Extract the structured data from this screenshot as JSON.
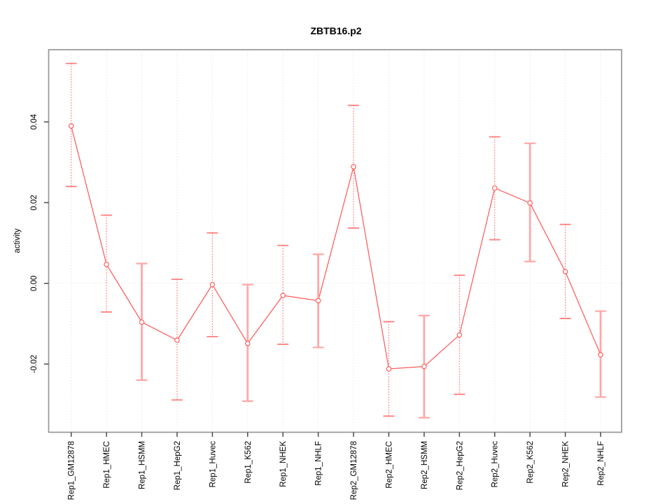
{
  "chart_data": {
    "type": "line",
    "title": "ZBTB16.p2",
    "xlabel": "",
    "ylabel": "activity",
    "categories": [
      "Rep1_GM12878",
      "Rep1_HMEC",
      "Rep1_HSMM",
      "Rep1_HepG2",
      "Rep1_Huvec",
      "Rep1_K562",
      "Rep1_NHEK",
      "Rep1_NHLF",
      "Rep2_GM12878",
      "Rep2_HMEC",
      "Rep2_HSMM",
      "Rep2_HepG2",
      "Rep2_Huvec",
      "Rep2_K562",
      "Rep2_NHEK",
      "Rep2_NHLF"
    ],
    "series": [
      {
        "name": "activity",
        "values": [
          0.039,
          0.0047,
          -0.0096,
          -0.0141,
          -0.0003,
          -0.0149,
          -0.003,
          -0.0043,
          0.0289,
          -0.0212,
          -0.0206,
          -0.0128,
          0.0236,
          0.0199,
          0.0029,
          -0.0177
        ],
        "ci_low": [
          0.024,
          -0.0071,
          -0.024,
          -0.0289,
          -0.0132,
          -0.0292,
          -0.0151,
          -0.0159,
          0.0137,
          -0.0329,
          -0.0333,
          -0.0275,
          0.0108,
          0.0054,
          -0.0087,
          -0.0282
        ],
        "ci_high": [
          0.0545,
          0.0169,
          0.0049,
          0.001,
          0.0125,
          -0.0003,
          0.0094,
          0.0072,
          0.0441,
          -0.0095,
          -0.008,
          0.002,
          0.0363,
          0.0347,
          0.0146,
          -0.0069
        ]
      }
    ],
    "error_bars": true,
    "error_bar_styles": [
      "dotted",
      "dotted",
      "solid",
      "dotted",
      "dotted",
      "solid",
      "dotted",
      "solid",
      "dotted",
      "dotted",
      "solid",
      "dotted",
      "dotted",
      "solid",
      "dotted",
      "solid"
    ],
    "yticks": {
      "values": [
        -0.02,
        0.0,
        0.02,
        0.04
      ],
      "labels": [
        "-0.02",
        "0.00",
        "0.02",
        "0.04"
      ]
    },
    "ylim": [
      -0.0369,
      0.0579
    ],
    "grid": {
      "vertical_per_category": true,
      "horizontal_zero_line": true,
      "style": "dotted"
    },
    "legend_position": "none",
    "marker": "open-circle",
    "colors": {
      "series": "#ff5b5b",
      "dotted_bar": "#ff6060",
      "dotted_bar_cap": "#ff7d7d",
      "solid_bar": "#ffa8a8",
      "grid": "#e0e0e0",
      "border": "#969696",
      "tick": "#4a4a4a",
      "text": "#000000",
      "background": "#ffffff"
    }
  }
}
